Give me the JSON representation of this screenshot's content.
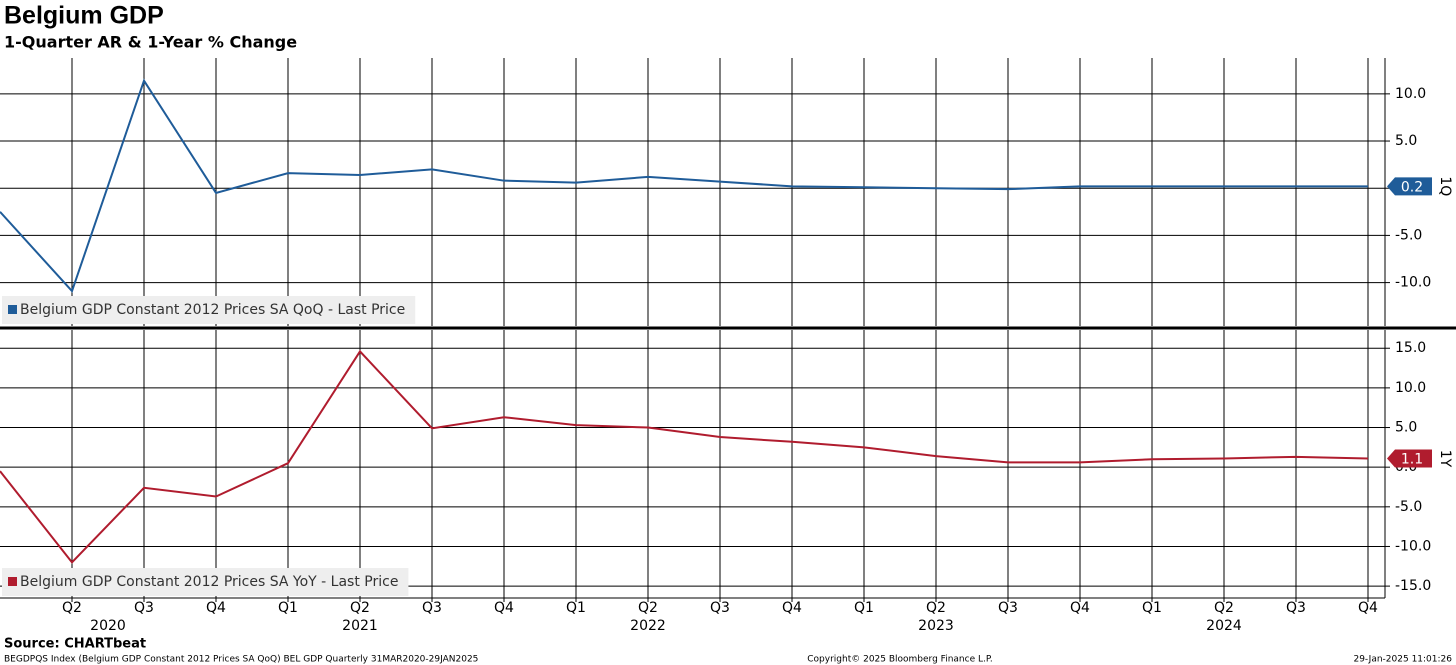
{
  "title": "Belgium GDP",
  "subtitle": "1-Quarter AR & 1-Year % Change",
  "source": "Source: CHARTbeat",
  "footer": "BEGDPQS Index (Belgium GDP Constant 2012 Prices SA QoQ) BEL GDP  Quarterly 31MAR2020-29JAN2025",
  "copyright": "Copyright© 2025 Bloomberg Finance L.P.",
  "timestamp": "29-Jan-2025 11:01:26",
  "chart_data": [
    {
      "type": "line",
      "axis_tag": "1Q",
      "legend": "upper left",
      "grid": true,
      "series": [
        {
          "name": "Belgium GDP Constant 2012 Prices SA QoQ - Last Price",
          "color": "#1f5c99",
          "values": [
            -2.5,
            -10.9,
            11.4,
            -0.5,
            1.6,
            1.4,
            2.0,
            0.8,
            0.6,
            1.2,
            0.7,
            0.2,
            0.1,
            0.0,
            -0.1,
            0.2,
            0.2,
            0.2,
            0.2,
            0.2
          ]
        }
      ],
      "ylim": [
        -14.6,
        13.8
      ],
      "yticks": [
        {
          "value": 10,
          "label": "10.0"
        },
        {
          "value": 5,
          "label": "5.0"
        },
        {
          "value": 0,
          "label": "0.0"
        },
        {
          "value": -5,
          "label": "-5.0"
        },
        {
          "value": -10,
          "label": "-10.0"
        }
      ]
    },
    {
      "type": "line",
      "axis_tag": "1Y",
      "legend": "lower left",
      "grid": true,
      "categories": [
        null,
        "Q2",
        "Q3",
        "Q4",
        "Q1",
        "Q2",
        "Q3",
        "Q4",
        "Q1",
        "Q2",
        "Q3",
        "Q4",
        "Q1",
        "Q2",
        "Q3",
        "Q4",
        "Q1",
        "Q2",
        "Q3",
        "Q4"
      ],
      "years": [
        "2020",
        "2021",
        "2022",
        "2023",
        "2024"
      ],
      "series": [
        {
          "name": "Belgium GDP Constant 2012 Prices SA YoY - Last Price",
          "color": "#b01c2e",
          "values": [
            -0.5,
            -12.0,
            -2.6,
            -3.7,
            0.5,
            14.6,
            4.9,
            6.3,
            5.3,
            5.0,
            3.8,
            3.2,
            2.5,
            1.4,
            0.6,
            0.6,
            1.0,
            1.1,
            1.3,
            1.1
          ]
        }
      ],
      "ylim": [
        -16.5,
        17.3
      ],
      "yticks": [
        {
          "value": 15,
          "label": "15.0"
        },
        {
          "value": 10,
          "label": "10.0"
        },
        {
          "value": 5,
          "label": "5.0"
        },
        {
          "value": 0,
          "label": "0.0"
        },
        {
          "value": -5,
          "label": "-5.0"
        },
        {
          "value": -10,
          "label": "-10.0"
        },
        {
          "value": -15,
          "label": "-15.0"
        }
      ]
    }
  ]
}
